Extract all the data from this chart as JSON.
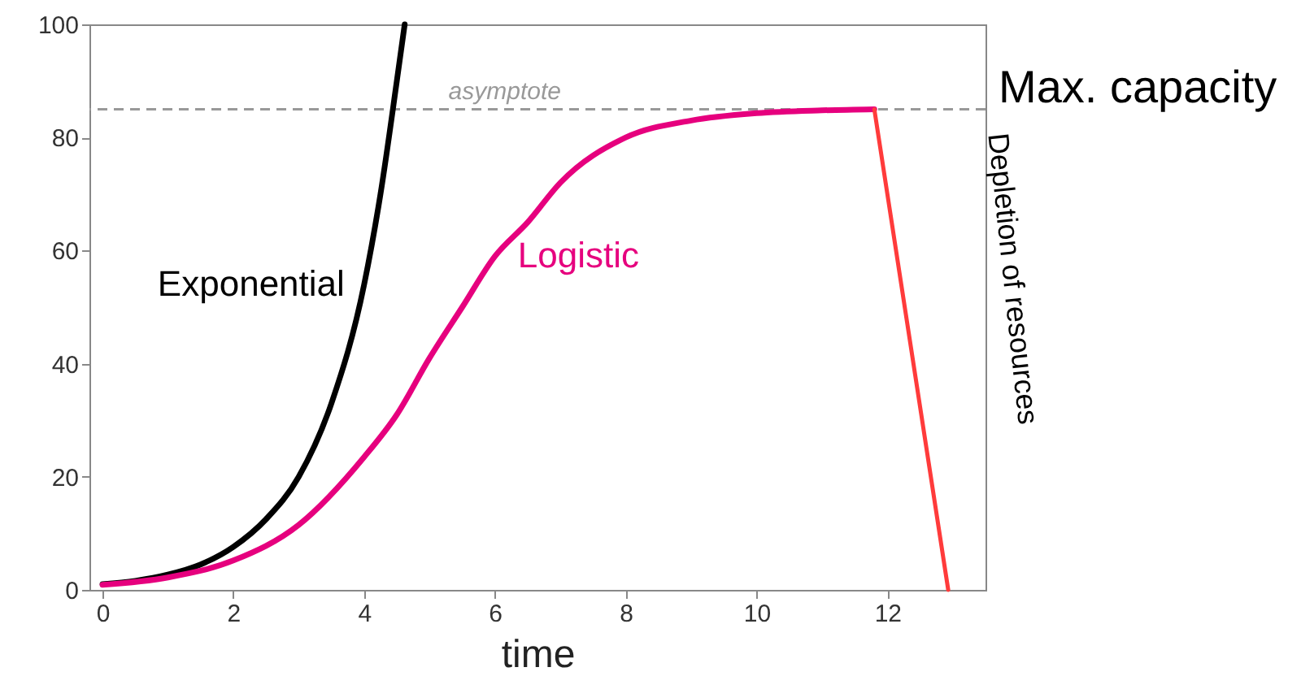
{
  "chart_data": {
    "type": "line",
    "xlabel": "time",
    "xlim": [
      -0.2,
      13.5
    ],
    "ylim": [
      0,
      100
    ],
    "xticks": [
      0,
      2,
      4,
      6,
      8,
      10,
      12
    ],
    "yticks": [
      0,
      20,
      40,
      60,
      80,
      100
    ],
    "series": [
      {
        "name": "Exponential",
        "color": "#000000",
        "x": [
          0,
          0.5,
          1,
          1.5,
          2,
          2.5,
          3,
          3.5,
          4,
          4.25,
          4.5,
          4.62
        ],
        "values": [
          1,
          1.6,
          2.7,
          4.5,
          7.6,
          12.5,
          20,
          33,
          54,
          70,
          90,
          100
        ]
      },
      {
        "name": "Logistic",
        "color": "#e6007e",
        "x": [
          0,
          1,
          2,
          3,
          4,
          4.5,
          5,
          5.5,
          6,
          6.5,
          7,
          8,
          9,
          10,
          11,
          11.8
        ],
        "values": [
          0.9,
          2.2,
          5.2,
          11.5,
          23.5,
          31,
          41,
          50,
          59,
          65,
          72,
          80,
          83,
          84.3,
          84.8,
          85
        ]
      },
      {
        "color": "#ff3b3b",
        "x": [
          11.8,
          12.93
        ],
        "values": [
          85,
          0
        ]
      }
    ],
    "ref_lines": [
      {
        "axis": "y",
        "value": 85,
        "label": "asymptote",
        "color": "#999999",
        "line_style": "dashed"
      }
    ],
    "annotations": [
      "Max. capacity",
      "Depletion of resources"
    ]
  }
}
